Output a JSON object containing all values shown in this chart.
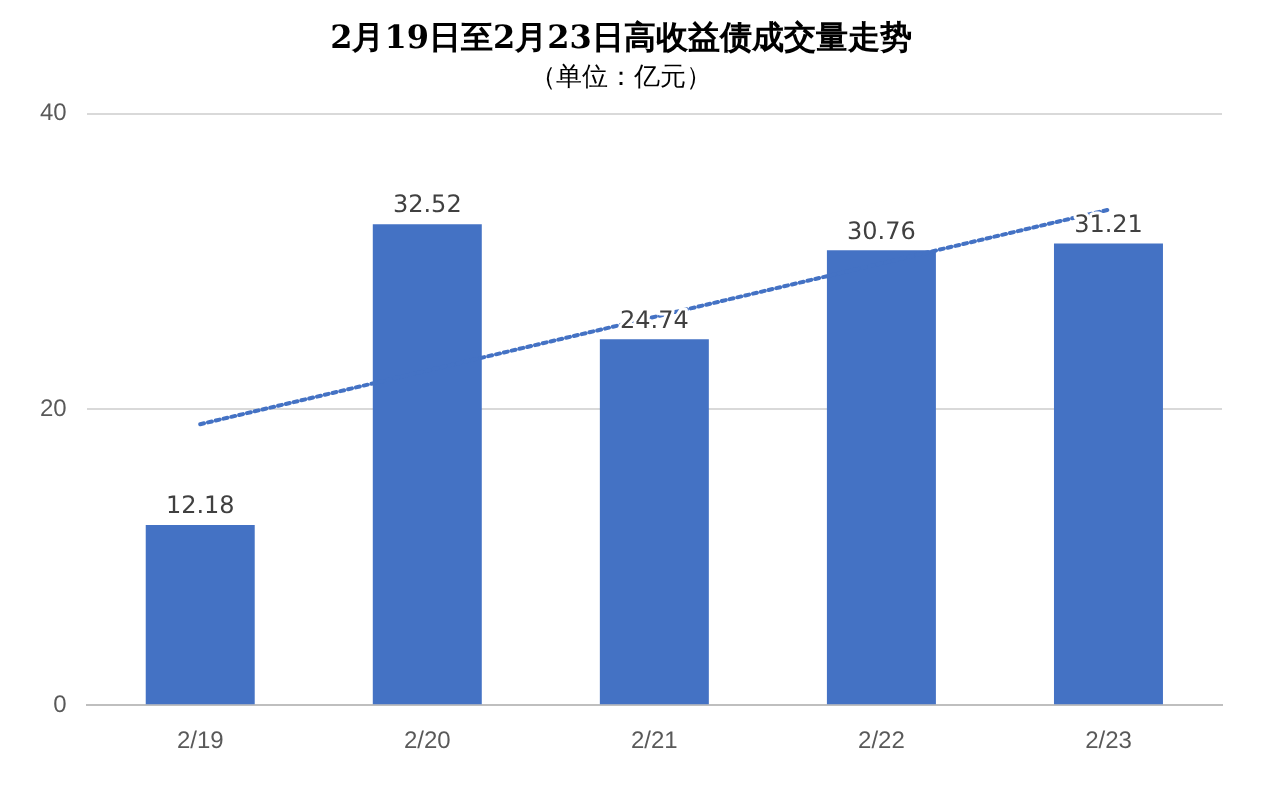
{
  "chart_data": {
    "type": "bar",
    "title": "2月19日至2月23日高收益债成交量走势",
    "subtitle": "（单位：亿元）",
    "categories": [
      "2/19",
      "2/20",
      "2/21",
      "2/22",
      "2/23"
    ],
    "series": [
      {
        "color": "#4472c4",
        "values": [
          12.18,
          32.52,
          24.74,
          30.76,
          31.21
        ],
        "value_labels": [
          "12.18",
          "32.52",
          "24.74",
          "30.76",
          "31.21"
        ]
      },
      {
        "type": "line",
        "color": "#4472c4",
        "x": [
          "2/19",
          "2/23"
        ],
        "values": [
          19,
          33.5
        ],
        "line_style": "dotted",
        "marker": "none"
      }
    ],
    "ylim": [
      0,
      40
    ],
    "yticks": [
      0,
      20,
      40
    ],
    "grid": "y"
  }
}
